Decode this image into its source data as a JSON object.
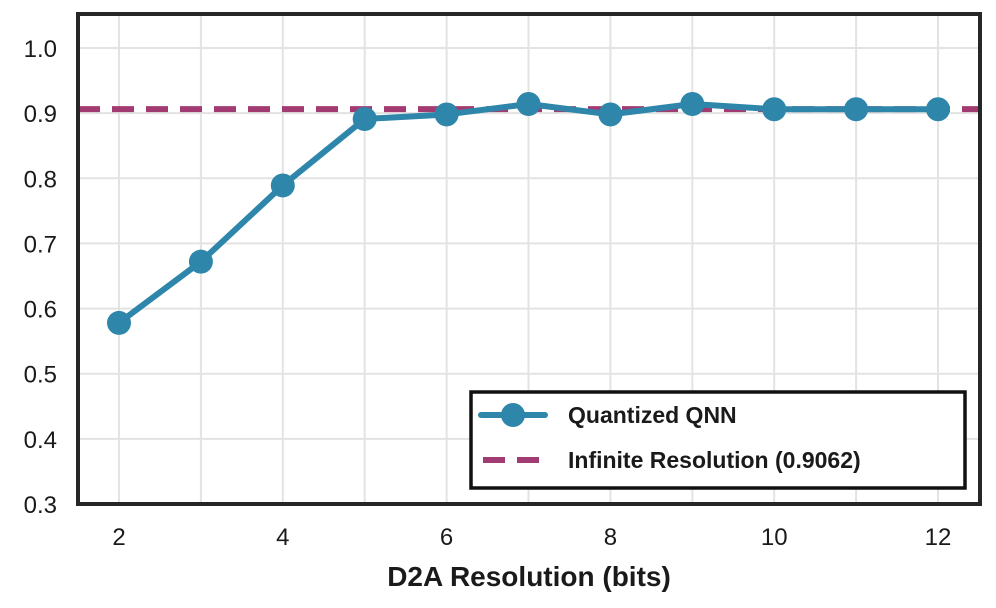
{
  "chart_data": {
    "type": "line",
    "title": "",
    "xlabel": "D2A Resolution (bits)",
    "ylabel": "",
    "xlim": [
      1.5,
      12.5
    ],
    "ylim": [
      0.3,
      1.05
    ],
    "xticks": [
      2,
      4,
      6,
      8,
      10,
      12
    ],
    "xtick_labels": [
      "2",
      "4",
      "6",
      "8",
      "10",
      "12"
    ],
    "xgrid": [
      2,
      3,
      4,
      5,
      6,
      7,
      8,
      9,
      10,
      11,
      12
    ],
    "yticks": [
      0.3,
      0.4,
      0.5,
      0.6,
      0.7,
      0.8,
      0.9,
      1.0
    ],
    "ytick_labels": [
      "0.3",
      "0.4",
      "0.5",
      "0.6",
      "0.7",
      "0.8",
      "0.9",
      "1.0"
    ],
    "grid": true,
    "legend_position": "bottom-right",
    "series": [
      {
        "name": "Quantized QNN",
        "style": "solid-marker",
        "color": "#2e86ab",
        "x": [
          2,
          3,
          4,
          5,
          6,
          7,
          8,
          9,
          10,
          11,
          12
        ],
        "values": [
          0.578,
          0.672,
          0.789,
          0.891,
          0.898,
          0.914,
          0.898,
          0.914,
          0.906,
          0.906,
          0.906
        ]
      }
    ],
    "reference_lines": [
      {
        "name": "Infinite Resolution (0.9062)",
        "value": 0.9062,
        "style": "dashed",
        "color": "#a23b72"
      }
    ]
  }
}
